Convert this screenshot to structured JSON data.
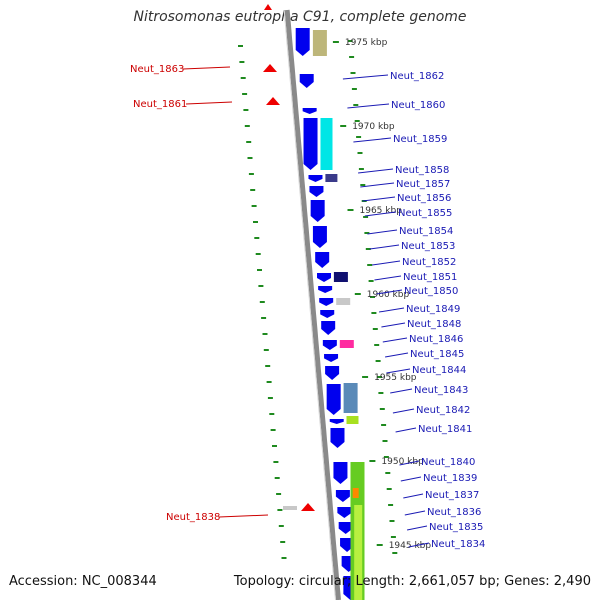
{
  "title": "Nitrosomonas eutropha C91, complete genome",
  "footer": {
    "accession": "Accession: NC_008344",
    "summary": "Topology: circular; Length: 2,661,057 bp; Genes: 2,490"
  },
  "colors": {
    "backbone": "#8a8a8a",
    "gene_forward": "#0000ee",
    "gene_reverse": "#ee0000",
    "label_forward": "#1a1ab4",
    "label_reverse": "#cc0000",
    "gc_skew": "#1f8a1f"
  },
  "scale_labels": [
    "1975 kbp",
    "1970 kbp",
    "1965 kbp",
    "1960 kbp",
    "1955 kbp",
    "1950 kbp",
    "1945 kbp"
  ],
  "forward_gene_labels": [
    "Neut_1862",
    "Neut_1860",
    "Neut_1859",
    "Neut_1858",
    "Neut_1857",
    "Neut_1856",
    "Neut_1855",
    "Neut_1854",
    "Neut_1853",
    "Neut_1852",
    "Neut_1851",
    "Neut_1850",
    "Neut_1849",
    "Neut_1848",
    "Neut_1846",
    "Neut_1845",
    "Neut_1844",
    "Neut_1843",
    "Neut_1842",
    "Neut_1841",
    "Neut_1840",
    "Neut_1839",
    "Neut_1837",
    "Neut_1836",
    "Neut_1835",
    "Neut_1834"
  ],
  "reverse_gene_labels": [
    "Neut_1863",
    "Neut_1861",
    "Neut_1838"
  ]
}
